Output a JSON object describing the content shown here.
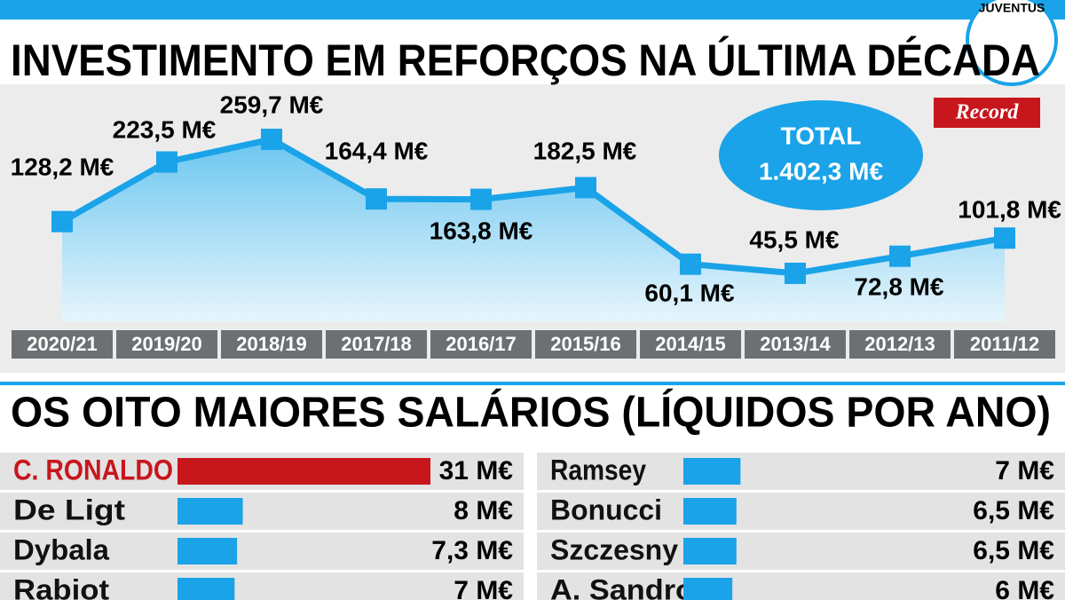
{
  "badge": "JUVENTUS",
  "logo": "Record",
  "chart_data": [
    {
      "type": "line",
      "title": "INVESTIMENTO EM REFORÇOS NA ÚLTIMA DÉCADA",
      "categories": [
        "2020/21",
        "2019/20",
        "2018/19",
        "2017/18",
        "2016/17",
        "2015/16",
        "2014/15",
        "2013/14",
        "2012/13",
        "2011/12"
      ],
      "values": [
        128.2,
        223.5,
        259.7,
        164.4,
        163.8,
        182.5,
        60.1,
        45.5,
        72.8,
        101.8
      ],
      "value_labels": [
        "128,2 M€",
        "223,5 M€",
        "259,7 M€",
        "164,4 M€",
        "163,8 M€",
        "182,5 M€",
        "60,1 M€",
        "45,5 M€",
        "72,8 M€",
        "101,8 M€"
      ],
      "color": "#1aa3e8",
      "annotation": {
        "title": "TOTAL",
        "text": "1.402,3 M€"
      }
    },
    {
      "type": "hbar",
      "title": "OS OITO MAIORES SALÁRIOS (LÍQUIDOS POR ANO)",
      "categories": [
        "C. RONALDO",
        "De Ligt",
        "Dybala",
        "Rabiot",
        "Ramsey",
        "Bonucci",
        "Szczesny",
        "A. Sandro"
      ],
      "values": [
        31,
        8,
        7.3,
        7,
        7,
        6.5,
        6.5,
        6
      ],
      "value_labels": [
        "31 M€",
        "8 M€",
        "7,3 M€",
        "7 M€",
        "7 M€",
        "6,5 M€",
        "6,5 M€",
        "6 M€"
      ],
      "colors": [
        "#c8161d",
        "#1aa3e8",
        "#1aa3e8",
        "#1aa3e8",
        "#1aa3e8",
        "#1aa3e8",
        "#1aa3e8",
        "#1aa3e8"
      ]
    }
  ]
}
